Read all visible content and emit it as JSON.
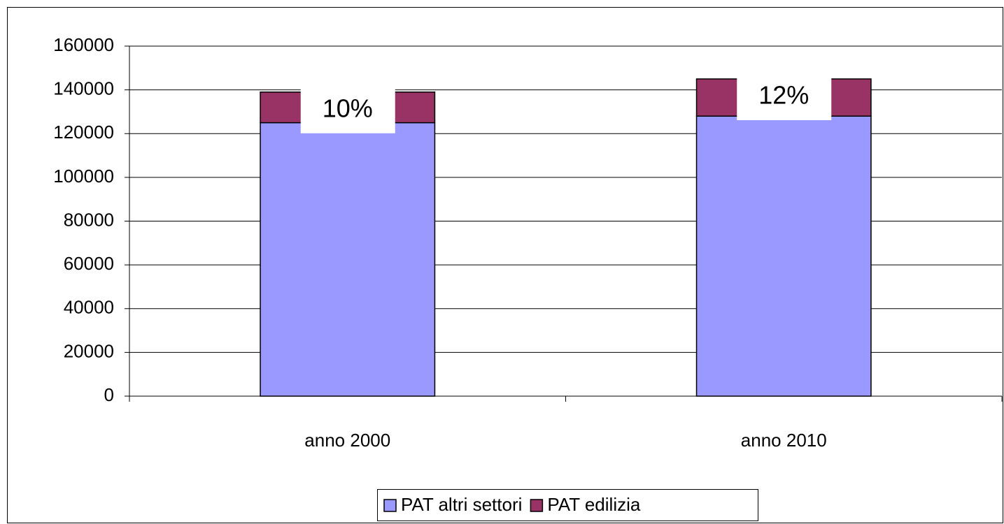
{
  "chart_data": {
    "type": "stacked_bar",
    "categories": [
      "anno 2000",
      "anno 2010"
    ],
    "series": [
      {
        "name": "PAT altri settori",
        "color": "#9999ff",
        "values": [
          125000,
          128000
        ]
      },
      {
        "name": "PAT edilizia",
        "color": "#993366",
        "values": [
          14000,
          17000
        ]
      }
    ],
    "annotations": [
      "10%",
      "12%"
    ],
    "ylim": [
      0,
      160000
    ],
    "yticks": [
      0,
      20000,
      40000,
      60000,
      80000,
      100000,
      120000,
      140000,
      160000
    ],
    "grid": true,
    "legend": "bottom"
  }
}
